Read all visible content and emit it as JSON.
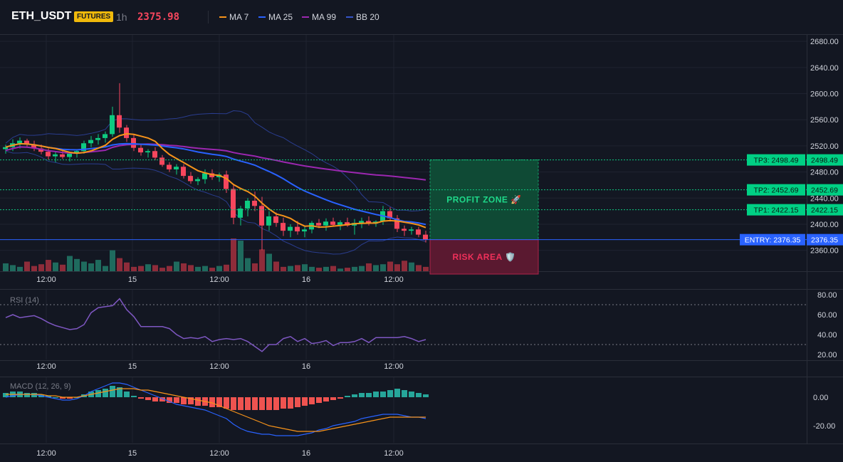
{
  "header": {
    "symbol": "ETH_USDT",
    "badge": "FUTURES",
    "timeframe": "1h",
    "price": "2375.98",
    "legend": [
      {
        "label": "MA 7",
        "color": "#f7931a"
      },
      {
        "label": "MA 25",
        "color": "#2962ff"
      },
      {
        "label": "MA 99",
        "color": "#9c27b0"
      },
      {
        "label": "BB 20",
        "color": "#1e3a8a"
      }
    ]
  },
  "chart_data": [
    {
      "type": "candlestick",
      "x_ticks": [
        "12:00",
        "15",
        "12:00",
        "16",
        "12:00"
      ],
      "y_ticks": [
        "2680.00",
        "2640.00",
        "2600.00",
        "2560.00",
        "2520.00",
        "2480.00",
        "2440.00",
        "2400.00",
        "2360.00"
      ],
      "ylim": [
        2328,
        2690
      ],
      "candles": [
        [
          2515,
          2522,
          2508,
          2518
        ],
        [
          2518,
          2530,
          2512,
          2524
        ],
        [
          2524,
          2533,
          2516,
          2528
        ],
        [
          2528,
          2531,
          2518,
          2522
        ],
        [
          2522,
          2528,
          2512,
          2516
        ],
        [
          2516,
          2522,
          2507,
          2511
        ],
        [
          2511,
          2516,
          2499,
          2504
        ],
        [
          2504,
          2511,
          2495,
          2507
        ],
        [
          2507,
          2513,
          2500,
          2503
        ],
        [
          2503,
          2510,
          2496,
          2508
        ],
        [
          2508,
          2515,
          2502,
          2512
        ],
        [
          2512,
          2528,
          2508,
          2524
        ],
        [
          2524,
          2535,
          2518,
          2529
        ],
        [
          2529,
          2538,
          2522,
          2532
        ],
        [
          2532,
          2542,
          2525,
          2538
        ],
        [
          2538,
          2580,
          2534,
          2567
        ],
        [
          2567,
          2616,
          2540,
          2548
        ],
        [
          2548,
          2552,
          2526,
          2532
        ],
        [
          2532,
          2538,
          2512,
          2517
        ],
        [
          2517,
          2522,
          2505,
          2510
        ],
        [
          2510,
          2515,
          2502,
          2512
        ],
        [
          2512,
          2518,
          2498,
          2502
        ],
        [
          2502,
          2506,
          2488,
          2491
        ],
        [
          2491,
          2495,
          2480,
          2484
        ],
        [
          2484,
          2492,
          2476,
          2488
        ],
        [
          2488,
          2492,
          2470,
          2474
        ],
        [
          2474,
          2480,
          2462,
          2466
        ],
        [
          2466,
          2472,
          2460,
          2469
        ],
        [
          2469,
          2484,
          2462,
          2478
        ],
        [
          2478,
          2484,
          2468,
          2472
        ],
        [
          2472,
          2479,
          2465,
          2476
        ],
        [
          2476,
          2482,
          2448,
          2454
        ],
        [
          2454,
          2460,
          2400,
          2410
        ],
        [
          2410,
          2428,
          2398,
          2424
        ],
        [
          2424,
          2440,
          2412,
          2436
        ],
        [
          2436,
          2450,
          2420,
          2428
        ],
        [
          2428,
          2442,
          2360,
          2398
        ],
        [
          2398,
          2420,
          2390,
          2412
        ],
        [
          2412,
          2418,
          2396,
          2402
        ],
        [
          2402,
          2410,
          2382,
          2390
        ],
        [
          2390,
          2400,
          2380,
          2396
        ],
        [
          2396,
          2405,
          2384,
          2389
        ],
        [
          2389,
          2398,
          2380,
          2392
        ],
        [
          2392,
          2405,
          2386,
          2402
        ],
        [
          2402,
          2408,
          2394,
          2398
        ],
        [
          2398,
          2409,
          2390,
          2404
        ],
        [
          2404,
          2410,
          2396,
          2399
        ],
        [
          2399,
          2406,
          2391,
          2403
        ],
        [
          2403,
          2410,
          2396,
          2398
        ],
        [
          2398,
          2408,
          2384,
          2402
        ],
        [
          2402,
          2410,
          2394,
          2405
        ],
        [
          2405,
          2412,
          2398,
          2401
        ],
        [
          2401,
          2406,
          2396,
          2404
        ],
        [
          2404,
          2428,
          2399,
          2420
        ],
        [
          2420,
          2426,
          2404,
          2409
        ],
        [
          2409,
          2414,
          2388,
          2393
        ],
        [
          2393,
          2398,
          2382,
          2390
        ],
        [
          2390,
          2396,
          2384,
          2392
        ],
        [
          2392,
          2396,
          2380,
          2384
        ],
        [
          2384,
          2390,
          2372,
          2376
        ]
      ],
      "volume": [
        18,
        14,
        10,
        22,
        12,
        16,
        26,
        20,
        15,
        35,
        28,
        22,
        18,
        26,
        12,
        48,
        30,
        20,
        10,
        12,
        16,
        14,
        8,
        12,
        22,
        18,
        14,
        10,
        12,
        8,
        12,
        15,
        75,
        70,
        30,
        18,
        50,
        40,
        22,
        10,
        12,
        14,
        16,
        10,
        8,
        10,
        12,
        6,
        8,
        10,
        12,
        18,
        14,
        16,
        22,
        16,
        24,
        20,
        14,
        10
      ],
      "levels": [
        {
          "label": "TP3: 2498.49",
          "value": 2498.49,
          "axis_label": "2498.49"
        },
        {
          "label": "TP2: 2452.69",
          "value": 2452.69,
          "axis_label": "2452.69"
        },
        {
          "label": "TP1: 2422.15",
          "value": 2422.15,
          "axis_label": "2422.15"
        },
        {
          "label": "ENTRY: 2376.35",
          "value": 2376.35,
          "axis_label": "2376.35"
        }
      ],
      "profit_zone_label": "PROFIT ZONE 🚀",
      "risk_zone_label": "RISK AREA 🛡️",
      "zone_top": 2498.49,
      "zone_entry": 2376.35,
      "zone_bottom": 2328
    },
    {
      "type": "line",
      "title": "RSI (14)",
      "x_ticks": [
        "12:00",
        "15",
        "12:00",
        "16",
        "12:00"
      ],
      "y_ticks": [
        "80.00",
        "60.00",
        "40.00",
        "20.00"
      ],
      "ylim": [
        15,
        85
      ],
      "overbought": 70,
      "oversold": 30,
      "values": [
        57,
        60,
        57,
        58,
        59,
        56,
        52,
        49,
        47,
        45,
        46,
        50,
        62,
        67,
        68,
        69,
        76,
        65,
        58,
        48,
        48,
        48,
        48,
        46,
        40,
        36,
        37,
        36,
        38,
        33,
        35,
        36,
        35,
        36,
        33,
        28,
        23,
        30,
        30,
        36,
        38,
        33,
        36,
        31,
        32,
        34,
        29,
        32,
        32,
        33,
        36,
        32,
        37,
        37,
        37,
        37,
        38,
        36,
        33,
        35
      ]
    },
    {
      "type": "bar",
      "title": "MACD (12, 26, 9)",
      "x_ticks": [
        "12:00",
        "15",
        "12:00",
        "16",
        "12:00"
      ],
      "y_ticks": [
        "0.00",
        "-20.00"
      ],
      "ylim": [
        -32,
        14
      ],
      "histogram": [
        3,
        4,
        4,
        3,
        3,
        2,
        1,
        0,
        -1,
        -1,
        0,
        2,
        4,
        5,
        6,
        8,
        7,
        4,
        1,
        -1,
        -2,
        -3,
        -3,
        -4,
        -4,
        -5,
        -5,
        -6,
        -6,
        -7,
        -7,
        -8,
        -9,
        -9,
        -9,
        -9,
        -9,
        -9,
        -9,
        -8,
        -8,
        -7,
        -6,
        -5,
        -4,
        -3,
        -2,
        -1,
        1,
        2,
        3,
        3,
        4,
        4,
        5,
        6,
        5,
        4,
        3,
        2
      ],
      "macd": [
        0,
        1,
        2,
        2,
        2,
        1,
        0,
        -1,
        -2,
        -2,
        -1,
        1,
        4,
        6,
        8,
        10,
        10,
        9,
        7,
        5,
        3,
        1,
        -1,
        -3,
        -5,
        -6,
        -7,
        -8,
        -9,
        -11,
        -13,
        -15,
        -19,
        -22,
        -24,
        -25,
        -26,
        -26,
        -27,
        -27,
        -27,
        -27,
        -26,
        -25,
        -23,
        -22,
        -20,
        -19,
        -18,
        -17,
        -15,
        -14,
        -13,
        -12,
        -12,
        -12,
        -13,
        -14,
        -14,
        -15
      ],
      "signal": [
        2,
        2,
        2,
        2,
        2,
        2,
        1,
        1,
        0,
        0,
        0,
        1,
        2,
        3,
        4,
        5,
        6,
        6,
        6,
        5,
        5,
        4,
        3,
        2,
        1,
        0,
        -1,
        -2,
        -3,
        -4,
        -6,
        -8,
        -10,
        -12,
        -14,
        -16,
        -18,
        -20,
        -21,
        -22,
        -23,
        -24,
        -24,
        -24,
        -24,
        -23,
        -22,
        -21,
        -20,
        -19,
        -18,
        -17,
        -16,
        -15,
        -14,
        -14,
        -14,
        -14,
        -14,
        -14
      ]
    }
  ]
}
